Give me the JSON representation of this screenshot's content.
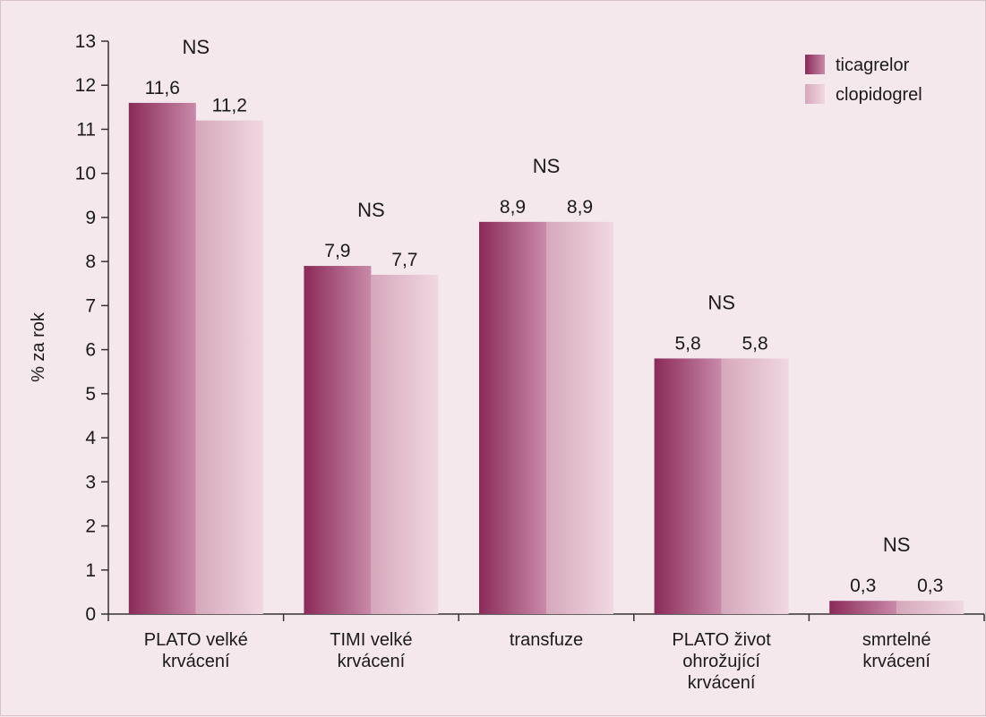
{
  "chart_data": {
    "type": "bar",
    "title": "",
    "xlabel": "",
    "ylabel": "% za rok",
    "ylim": [
      0,
      13
    ],
    "yticks": [
      0,
      1,
      2,
      3,
      4,
      5,
      6,
      7,
      8,
      9,
      10,
      11,
      12,
      13
    ],
    "grid": false,
    "legend_position": "top-right",
    "categories": [
      [
        "PLATO velké",
        "krvácení"
      ],
      [
        "TIMI velké",
        "krvácení"
      ],
      [
        "transfuze"
      ],
      [
        "PLATO život",
        "ohrožující",
        "krvácení"
      ],
      [
        "smrtelné",
        "krvácení"
      ]
    ],
    "series": [
      {
        "name": "ticagrelor",
        "values": [
          11.6,
          7.9,
          8.9,
          5.8,
          0.3
        ],
        "labels": [
          "11,6",
          "7,9",
          "8,9",
          "5,8",
          "0,3"
        ],
        "color_dark": "#8a2a58",
        "color_light": "#c98aa8"
      },
      {
        "name": "clopidogrel",
        "values": [
          11.2,
          7.7,
          8.9,
          5.8,
          0.3
        ],
        "labels": [
          "11,2",
          "7,7",
          "8,9",
          "5,8",
          "0,3"
        ],
        "color_dark": "#d6a7bc",
        "color_light": "#f0d8e2"
      }
    ],
    "annotations": [
      "NS",
      "NS",
      "NS",
      "NS",
      "NS"
    ]
  }
}
